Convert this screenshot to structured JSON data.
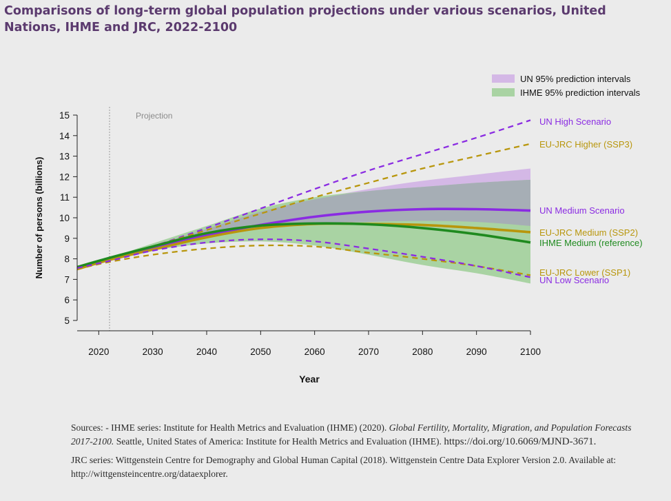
{
  "title": "Comparisons of long-term global population projections under various scenarios, United Nations, IHME and JRC, 2022-2100",
  "sources": {
    "ihme_prefix": "Sources: - IHME series: Institute for Health Metrics and Evaluation (IHME) (2020). ",
    "ihme_italic": "Global Fertility, Mortality, Migration, and Population Forecasts 2017-2100.",
    "ihme_rest": " Seattle, United States of America: Institute for Health Metrics and Evaluation (IHME). ",
    "ihme_doi": "https://doi.org/10.6069/MJND-3671.",
    "jrc": "JRC series: Wittgenstein Centre for Demography and Global Human Capital (2018). Wittgenstein Centre Data Explorer Version 2.0. Available at: http://wittgensteincentre.org/dataexplorer."
  },
  "colors": {
    "un": "#8a2be2",
    "jrc": "#b8960c",
    "ihme": "#1f8a1f",
    "un_band": "#d4b8e6",
    "ihme_band": "#a9d3a3",
    "overlap": "#a6aeb5"
  },
  "chart_data": {
    "type": "line",
    "xlabel": "Year",
    "ylabel": "Number of persons (billions)",
    "xlim": [
      2016,
      2100
    ],
    "ylim": [
      5,
      15
    ],
    "xticks": [
      2020,
      2030,
      2040,
      2050,
      2060,
      2070,
      2080,
      2090,
      2100
    ],
    "yticks": [
      5,
      6,
      7,
      8,
      9,
      10,
      11,
      12,
      13,
      14,
      15
    ],
    "annotation": {
      "text": "Projection",
      "x": 2022
    },
    "x": [
      2016,
      2022,
      2030,
      2040,
      2050,
      2060,
      2070,
      2080,
      2090,
      2100
    ],
    "bands": [
      {
        "name": "UN 95% prediction intervals",
        "color": "#d4b8e6",
        "lower": [
          7.55,
          7.95,
          8.45,
          9.0,
          9.45,
          9.7,
          9.8,
          9.85,
          9.8,
          9.6
        ],
        "upper": [
          7.6,
          8.0,
          8.65,
          9.45,
          10.3,
          10.9,
          11.4,
          11.8,
          12.1,
          12.4
        ]
      },
      {
        "name": "IHME 95% prediction intervals",
        "color": "#a9d3a3",
        "lower": [
          7.55,
          7.95,
          8.4,
          8.75,
          8.85,
          8.65,
          8.2,
          7.7,
          7.3,
          6.8
        ],
        "upper": [
          7.6,
          8.05,
          8.75,
          9.6,
          10.45,
          11.0,
          11.3,
          11.5,
          11.7,
          11.85
        ]
      }
    ],
    "series": [
      {
        "name": "UN High Scenario",
        "style": "dashed",
        "color": "#8a2be2",
        "values": [
          7.55,
          7.95,
          8.6,
          9.5,
          10.45,
          11.4,
          12.3,
          13.1,
          13.9,
          14.75
        ]
      },
      {
        "name": "EU-JRC Higher (SSP3)",
        "style": "dashed",
        "color": "#b8960c",
        "values": [
          7.55,
          7.95,
          8.6,
          9.4,
          10.2,
          11.0,
          11.7,
          12.4,
          13.0,
          13.6
        ]
      },
      {
        "name": "UN Medium Scenario",
        "style": "solid",
        "color": "#8a2be2",
        "values": [
          7.55,
          8.0,
          8.55,
          9.15,
          9.65,
          10.05,
          10.3,
          10.42,
          10.42,
          10.35
        ]
      },
      {
        "name": "EU-JRC Medium (SSP2)",
        "style": "solid",
        "color": "#b8960c",
        "values": [
          7.5,
          7.95,
          8.45,
          9.05,
          9.5,
          9.7,
          9.7,
          9.65,
          9.5,
          9.3
        ]
      },
      {
        "name": "IHME Medium (reference)",
        "style": "solid",
        "color": "#1f8a1f",
        "values": [
          7.6,
          8.05,
          8.6,
          9.25,
          9.62,
          9.72,
          9.68,
          9.5,
          9.2,
          8.8
        ]
      },
      {
        "name": "EU-JRC Lower (SSP1)",
        "style": "dashed",
        "color": "#b8960c",
        "values": [
          7.5,
          7.85,
          8.2,
          8.5,
          8.65,
          8.6,
          8.3,
          8.0,
          7.65,
          7.2
        ]
      },
      {
        "name": "UN Low Scenario",
        "style": "dashed",
        "color": "#8a2be2",
        "values": [
          7.55,
          7.9,
          8.4,
          8.8,
          8.95,
          8.85,
          8.5,
          8.1,
          7.65,
          7.1
        ]
      }
    ],
    "legend": [
      {
        "label": "UN 95% prediction intervals",
        "color": "#d4b8e6"
      },
      {
        "label": "IHME 95% prediction intervals",
        "color": "#a9d3a3"
      }
    ]
  }
}
